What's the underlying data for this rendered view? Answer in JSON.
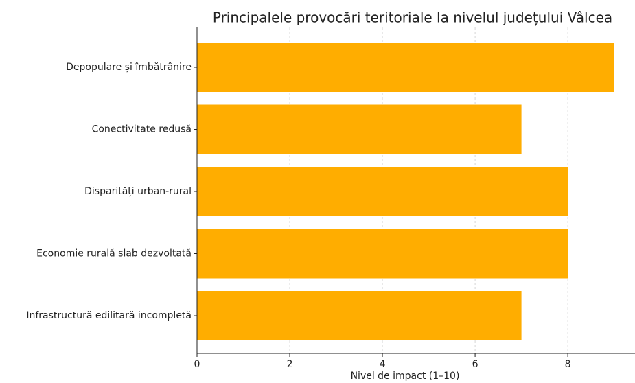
{
  "chart_data": {
    "type": "barh",
    "title": "Principalele provocări teritoriale la nivelul județului Vâlcea",
    "xlabel": "Nivel de impact (1–10)",
    "categories": [
      "Depopulare și îmbătrânire",
      "Conectivitate redusă",
      "Disparități urban-rural",
      "Economie rurală slab dezvoltată",
      "Infrastructură edilitară incompletă"
    ],
    "values": [
      9,
      7,
      8,
      8,
      7
    ],
    "color": "#ffad00",
    "xlim": [
      0,
      9.45
    ],
    "xticks": [
      0,
      2,
      4,
      6,
      8
    ],
    "grid": true
  }
}
